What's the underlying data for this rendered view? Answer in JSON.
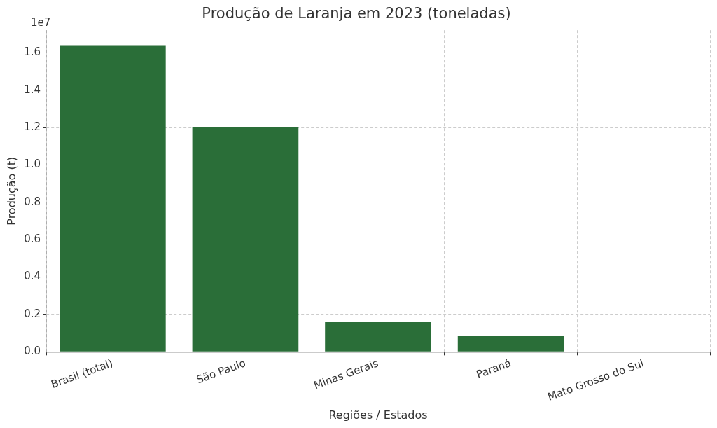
{
  "chart_data": {
    "type": "bar",
    "title": "Produção de Laranja em 2023 (toneladas)",
    "xlabel": "Regiões / Estados",
    "ylabel": "Produção (t)",
    "categories": [
      "Brasil (total)",
      "São Paulo",
      "Minas Gerais",
      "Paraná",
      "Mato Grosso do Sul"
    ],
    "values": [
      1.64,
      1.2,
      0.16,
      0.085,
      0
    ],
    "color": "#2a6e38",
    "ylim": [
      0,
      1.72
    ],
    "yticks": [
      {
        "value": 0,
        "label": "0.0"
      },
      0.2,
      0.4,
      0.6,
      0.8,
      {
        "value": 1,
        "label": "1.0"
      },
      1.2,
      1.4,
      1.6
    ],
    "annotations": [
      "1e7"
    ],
    "grid": true,
    "legend": false
  }
}
